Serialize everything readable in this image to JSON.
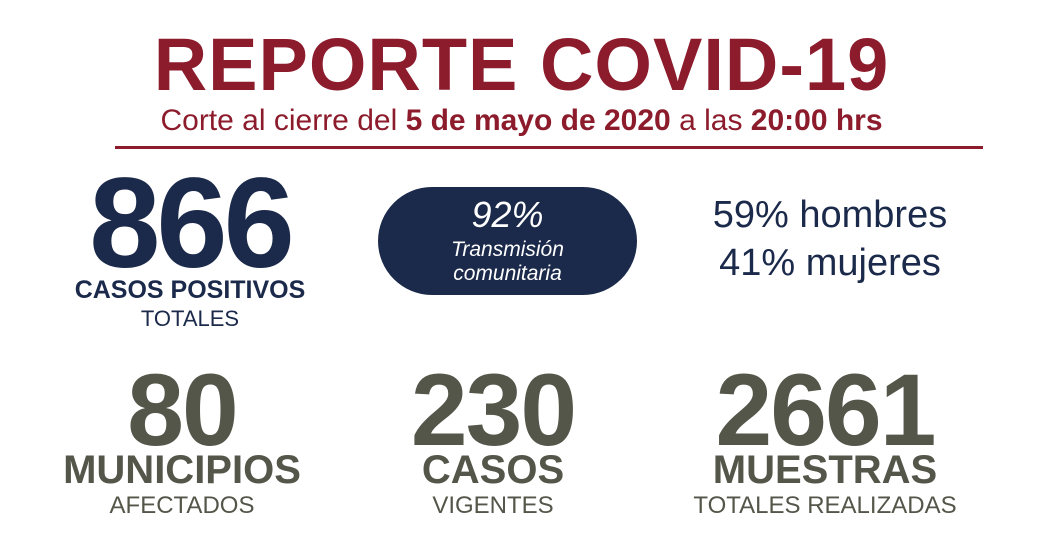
{
  "header": {
    "title": "REPORTE COVID-19",
    "subtitle": {
      "prefix": "Corte al cierre del ",
      "date": "5 de mayo de 2020",
      "middle": " a las ",
      "time": "20:00 hrs"
    }
  },
  "positive_cases": {
    "value": "866",
    "label": "CASOS POSITIVOS",
    "sublabel": "TOTALES"
  },
  "transmission": {
    "value": "92%",
    "line1": "Transmisión",
    "line2": "comunitaria"
  },
  "gender": {
    "men": "59% hombres",
    "women": "41% mujeres"
  },
  "stats": [
    {
      "value": "80",
      "label": "MUNICIPIOS",
      "sublabel": "AFECTADOS"
    },
    {
      "value": "230",
      "label": "CASOS",
      "sublabel": "VIGENTES"
    },
    {
      "value": "2661",
      "label": "MUESTRAS",
      "sublabel": "TOTALES REALIZADAS"
    }
  ]
}
